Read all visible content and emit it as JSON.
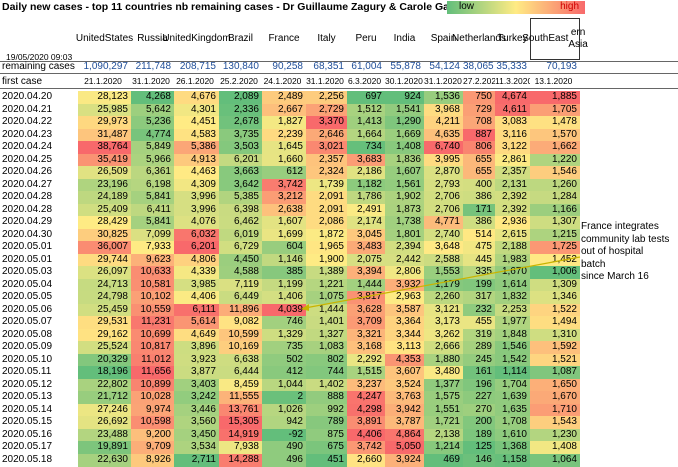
{
  "title": "Daily new cases - top 11 countries nb remaining cases  - Dr Guillaume Zagury & Carole Gabay",
  "legend": {
    "low": "low",
    "high": "high"
  },
  "timestamp": "19/05/2020 09:03",
  "countries": [
    "United States",
    "Russia",
    "United Kingdom",
    "Brazil",
    "France",
    "Italy",
    "Peru",
    "India",
    "Spain",
    "Netherlands",
    "Turkey",
    "SouthEastern Asia"
  ],
  "header_lines": [
    [
      "United",
      "States"
    ],
    [
      "Russia"
    ],
    [
      "United",
      "Kingdo",
      "m"
    ],
    [
      "Brazil"
    ],
    [
      "France"
    ],
    [
      "Italy"
    ],
    [
      "Peru"
    ],
    [
      "India"
    ],
    [
      "Spain"
    ],
    [
      "Nether",
      "lands"
    ],
    [
      "Turkey"
    ],
    [
      "SouthEast",
      "ern Asia"
    ]
  ],
  "remaining_label": "remaining cases",
  "remaining_cases": [
    "1,090,297",
    "211,748",
    "208,715",
    "130,840",
    "90,258",
    "68,351",
    "61,004",
    "55,878",
    "54,124",
    "38,065",
    "35,333",
    "70,193"
  ],
  "first_case_label": "first case",
  "first_case": [
    "21.1.2020",
    "31.1.2020",
    "26.1.2020",
    "25.2.2020",
    "24.1.2020",
    "31.1.2020",
    "6.3.2020",
    "30.1.2020",
    "31.1.2020",
    "27.2.2020",
    "11.3.2020",
    "13.1.2020"
  ],
  "rows": [
    {
      "date": "2020.04.20",
      "values": [
        "28,123",
        "4,268",
        "4,676",
        "2,089",
        "2,489",
        "2,256",
        "697",
        "924",
        "1,536",
        "750",
        "4,674",
        "1,885"
      ]
    },
    {
      "date": "2020.04.21",
      "values": [
        "25,985",
        "5,642",
        "4,301",
        "2,336",
        "2,667",
        "2,729",
        "1,512",
        "1,541",
        "3,968",
        "729",
        "4,611",
        "1,705"
      ]
    },
    {
      "date": "2020.04.22",
      "values": [
        "29,973",
        "5,236",
        "4,451",
        "2,678",
        "1,827",
        "3,370",
        "1,413",
        "1,290",
        "4,211",
        "708",
        "3,083",
        "1,478"
      ]
    },
    {
      "date": "2020.04.23",
      "values": [
        "31,487",
        "4,774",
        "4,583",
        "3,735",
        "2,239",
        "2,646",
        "1,664",
        "1,669",
        "4,635",
        "887",
        "3,116",
        "1,570"
      ]
    },
    {
      "date": "2020.04.24",
      "values": [
        "38,764",
        "5,849",
        "5,386",
        "3,503",
        "1,645",
        "3,021",
        "734",
        "1,408",
        "6,740",
        "806",
        "3,122",
        "1,662"
      ]
    },
    {
      "date": "2020.04.25",
      "values": [
        "35,419",
        "5,966",
        "4,913",
        "6,201",
        "1,660",
        "2,357",
        "3,683",
        "1,836",
        "3,995",
        "655",
        "2,861",
        "1,220"
      ]
    },
    {
      "date": "2020.04.26",
      "values": [
        "26,509",
        "6,361",
        "4,463",
        "3,663",
        "612",
        "2,324",
        "2,186",
        "1,607",
        "2,870",
        "655",
        "2,357",
        "1,546"
      ]
    },
    {
      "date": "2020.04.27",
      "values": [
        "23,196",
        "6,198",
        "4,309",
        "3,642",
        "3,742",
        "1,739",
        "1,182",
        "1,561",
        "2,793",
        "400",
        "2,131",
        "1,260"
      ]
    },
    {
      "date": "2020.04.28",
      "values": [
        "24,189",
        "5,841",
        "3,996",
        "5,385",
        "3,212",
        "2,091",
        "1,786",
        "1,902",
        "2,706",
        "386",
        "2,392",
        "1,284"
      ]
    },
    {
      "date": "2020.04.28",
      "values": [
        "25,409",
        "6,411",
        "3,996",
        "6,398",
        "2,638",
        "2,091",
        "2,491",
        "1,873",
        "2,706",
        "171",
        "2,392",
        "1,166"
      ]
    },
    {
      "date": "2020.04.29",
      "values": [
        "28,429",
        "5,841",
        "4,076",
        "6,462",
        "1,607",
        "2,086",
        "2,174",
        "1,738",
        "4,771",
        "386",
        "2,936",
        "1,307"
      ]
    },
    {
      "date": "2020.04.30",
      "values": [
        "30,825",
        "7,099",
        "6,032",
        "6,019",
        "1,699",
        "1,872",
        "3,045",
        "1,801",
        "2,740",
        "514",
        "2,615",
        "1,215"
      ]
    },
    {
      "date": "2020.05.01",
      "values": [
        "36,007",
        "7,933",
        "6,201",
        "6,729",
        "604",
        "1,965",
        "3,483",
        "2,394",
        "3,648",
        "475",
        "2,188",
        "1,725"
      ]
    },
    {
      "date": "2020.05.01",
      "values": [
        "29,744",
        "9,623",
        "4,806",
        "4,450",
        "1,146",
        "1,900",
        "2,075",
        "2,442",
        "2,588",
        "445",
        "1,983",
        "1,452"
      ]
    },
    {
      "date": "2020.05.03",
      "values": [
        "26,097",
        "10,633",
        "4,339",
        "4,588",
        "385",
        "1,389",
        "3,394",
        "2,806",
        "1,553",
        "335",
        "1,670",
        "1,006"
      ]
    },
    {
      "date": "2020.05.04",
      "values": [
        "24,713",
        "10,581",
        "3,985",
        "7,119",
        "1,199",
        "1,221",
        "1,444",
        "3,932",
        "1,179",
        "199",
        "1,614",
        "1,309"
      ]
    },
    {
      "date": "2020.05.05",
      "values": [
        "24,798",
        "10,102",
        "4,406",
        "6,449",
        "1,406",
        "1,075",
        "3,817",
        "2,963",
        "2,260",
        "317",
        "1,832",
        "1,346"
      ]
    },
    {
      "date": "2020.05.06",
      "values": [
        "25,459",
        "10,559",
        "6,111",
        "11,896",
        "4,039",
        "1,444",
        "3,628",
        "3,587",
        "3,121",
        "232",
        "2,253",
        "1,522"
      ]
    },
    {
      "date": "2020.05.07",
      "values": [
        "29,531",
        "11,231",
        "5,614",
        "9,082",
        "746",
        "1,401",
        "3,709",
        "3,364",
        "3,173",
        "455",
        "1,977",
        "1,494"
      ]
    },
    {
      "date": "2020.05.08",
      "values": [
        "29,162",
        "10,699",
        "4,649",
        "10,599",
        "1,329",
        "1,327",
        "3,321",
        "3,344",
        "3,262",
        "319",
        "1,848",
        "1,310"
      ]
    },
    {
      "date": "2020.05.09",
      "values": [
        "25,524",
        "10,817",
        "3,896",
        "10,169",
        "735",
        "1,083",
        "3,168",
        "3,113",
        "2,666",
        "289",
        "1,546",
        "1,592"
      ]
    },
    {
      "date": "2020.05.10",
      "values": [
        "20,329",
        "11,012",
        "3,923",
        "6,638",
        "502",
        "802",
        "2,292",
        "4,353",
        "1,880",
        "245",
        "1,542",
        "1,521"
      ]
    },
    {
      "date": "2020.05.11",
      "values": [
        "18,196",
        "11,656",
        "3,877",
        "6,444",
        "412",
        "744",
        "1,515",
        "3,607",
        "3,480",
        "161",
        "1,114",
        "1,087"
      ]
    },
    {
      "date": "2020.05.12",
      "values": [
        "22,802",
        "10,899",
        "3,403",
        "8,459",
        "1,044",
        "1,402",
        "3,237",
        "3,524",
        "1,377",
        "196",
        "1,704",
        "1,650"
      ]
    },
    {
      "date": "2020.05.13",
      "values": [
        "21,712",
        "10,028",
        "3,242",
        "11,555",
        "2",
        "888",
        "4,247",
        "3,763",
        "1,575",
        "227",
        "1,639",
        "1,670"
      ]
    },
    {
      "date": "2020.05.14",
      "values": [
        "27,246",
        "9,974",
        "3,446",
        "13,761",
        "1,026",
        "992",
        "4,298",
        "3,942",
        "1,551",
        "270",
        "1,635",
        "1,710"
      ]
    },
    {
      "date": "2020.05.15",
      "values": [
        "26,692",
        "10,598",
        "3,560",
        "15,305",
        "942",
        "789",
        "3,891",
        "3,787",
        "1,721",
        "200",
        "1,708",
        "1,543"
      ]
    },
    {
      "date": "2020.05.16",
      "values": [
        "23,488",
        "9,200",
        "3,450",
        "14,919",
        "-92",
        "875",
        "4,406",
        "4,864",
        "2,138",
        "189",
        "1,610",
        "1,230"
      ]
    },
    {
      "date": "2020.05.17",
      "values": [
        "19,891",
        "9,709",
        "3,534",
        "7,938",
        "490",
        "675",
        "3,742",
        "5,050",
        "1,214",
        "125",
        "1,368",
        "1,408"
      ]
    },
    {
      "date": "2020.05.18",
      "values": [
        "22,630",
        "8,926",
        "2,711",
        "14,288",
        "496",
        "451",
        "2,660",
        "3,924",
        "469",
        "146",
        "1,158",
        "1,064"
      ]
    }
  ],
  "annotation": [
    "France integrates",
    "community lab tests",
    "out of hospital",
    "batch",
    "since March 16"
  ],
  "colors": {
    "low": "#63be7b",
    "mid": "#ffeb84",
    "high": "#f8696b",
    "number_blue": "#1f4e99",
    "arrow": "#c9b400"
  }
}
